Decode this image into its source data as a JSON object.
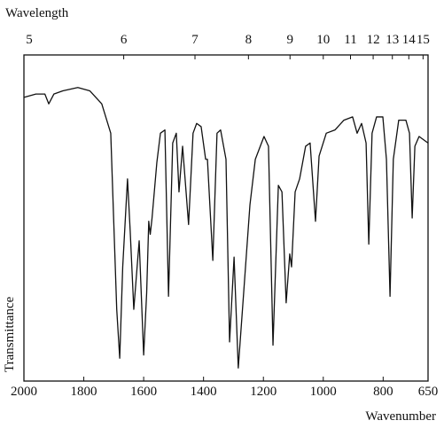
{
  "chart_data": {
    "type": "line",
    "x_label": "Wavenumber",
    "x2_label": "Wavelength",
    "y_label": "Transmittance",
    "color": "#111111",
    "xlim": [
      2000,
      650
    ],
    "xticks": [
      2000,
      1800,
      1600,
      1400,
      1200,
      1000,
      800,
      650
    ],
    "x2ticks": [
      5,
      6,
      7,
      8,
      9,
      10,
      11,
      12,
      13,
      14,
      15
    ],
    "ylim": [
      0,
      100
    ],
    "x": [
      2000,
      1960,
      1930,
      1917,
      1900,
      1870,
      1820,
      1780,
      1740,
      1710,
      1700,
      1690,
      1680,
      1670,
      1654,
      1645,
      1633,
      1615,
      1600,
      1590,
      1583,
      1578,
      1572,
      1556,
      1544,
      1529,
      1517,
      1503,
      1491,
      1482,
      1470,
      1450,
      1435,
      1423,
      1408,
      1393,
      1387,
      1369,
      1355,
      1343,
      1325,
      1313,
      1298,
      1284,
      1266,
      1245,
      1227,
      1198,
      1183,
      1168,
      1150,
      1138,
      1124,
      1112,
      1106,
      1094,
      1079,
      1059,
      1044,
      1026,
      1014,
      990,
      961,
      931,
      902,
      887,
      872,
      857,
      848,
      837,
      822,
      801,
      789,
      777,
      766,
      748,
      724,
      712,
      703,
      694,
      680,
      650
    ],
    "values": [
      87,
      88,
      88,
      85,
      88,
      89,
      90,
      89,
      85,
      76,
      49,
      22,
      7,
      35,
      62,
      46,
      22,
      43,
      8,
      27,
      49,
      45,
      50,
      67,
      76,
      77,
      26,
      73,
      76,
      58,
      72,
      48,
      76,
      79,
      78,
      68,
      68,
      37,
      76,
      77,
      68,
      12,
      38,
      4,
      27,
      54,
      68,
      75,
      72,
      11,
      60,
      58,
      24,
      39,
      35,
      58,
      62,
      72,
      73,
      49,
      69,
      76,
      77,
      80,
      81,
      76,
      79,
      73,
      42,
      76,
      81,
      81,
      68,
      26,
      68,
      80,
      80,
      76,
      50,
      72,
      75,
      73
    ]
  }
}
